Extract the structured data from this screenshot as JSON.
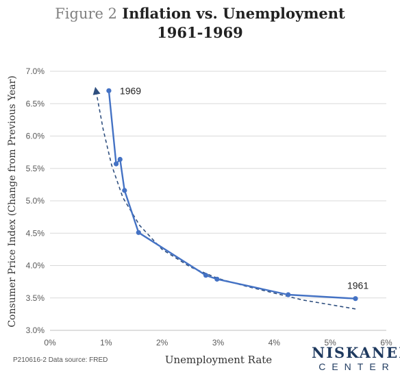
{
  "title": {
    "figure_label": "Figure 2",
    "line1": "Inflation vs. Unemployment",
    "line2": "1961-1969"
  },
  "footer": {
    "note": "P210616-2  Data source: FRED"
  },
  "logo": {
    "top": "NISKANEN",
    "bottom": "CENTER",
    "color": "#1f3a5f"
  },
  "chart_data": {
    "type": "line",
    "xlabel": "Unemployment Rate",
    "ylabel": "Consumer Price Index (Change from Previous Year)",
    "xlim": [
      0,
      6
    ],
    "ylim": [
      3.0,
      7.0
    ],
    "x_ticks": [
      0,
      1,
      2,
      3,
      4,
      5,
      6
    ],
    "x_tick_labels": [
      "0%",
      "1%",
      "2%",
      "3%",
      "4%",
      "5%",
      "6%"
    ],
    "y_ticks": [
      3.0,
      3.5,
      4.0,
      4.5,
      5.0,
      5.5,
      6.0,
      6.5,
      7.0
    ],
    "y_tick_labels": [
      "3.0%",
      "3.5%",
      "4.0%",
      "4.5%",
      "5.0%",
      "5.5%",
      "6.0%",
      "6.5%",
      "7.0%"
    ],
    "grid": "horizontal",
    "series": [
      {
        "color": "#4472c4",
        "style": "solid-with-markers",
        "x": [
          5.45,
          4.25,
          2.98,
          2.78,
          1.58,
          1.33,
          1.25,
          1.18,
          1.05
        ],
        "y": [
          3.49,
          3.55,
          3.79,
          3.85,
          4.51,
          5.16,
          5.64,
          5.57,
          6.7
        ]
      },
      {
        "color": "#2f4f7f",
        "style": "dashed-trend-arrow",
        "x": [
          5.45,
          4.5,
          3.5,
          3.0,
          2.5,
          2.0,
          1.6,
          1.3,
          1.1,
          0.95,
          0.82
        ],
        "y": [
          3.33,
          3.47,
          3.68,
          3.8,
          3.98,
          4.25,
          4.62,
          5.05,
          5.55,
          6.1,
          6.7
        ]
      }
    ],
    "annotations": [
      {
        "text": "1969",
        "x": 1.05,
        "y": 6.7
      },
      {
        "text": "1961",
        "x": 5.45,
        "y": 3.49
      }
    ]
  }
}
